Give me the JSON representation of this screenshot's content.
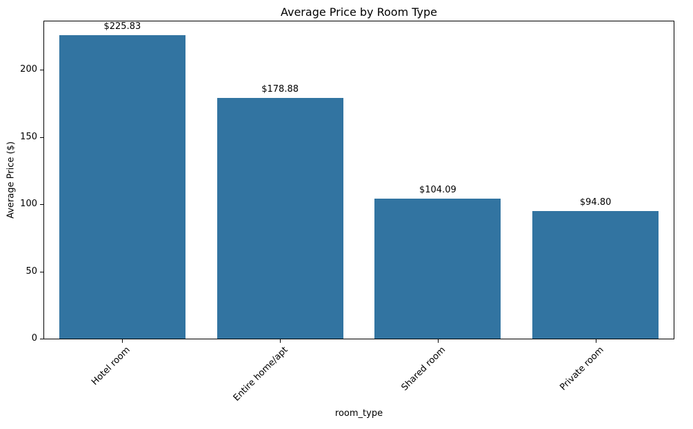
{
  "chart_data": {
    "type": "bar",
    "title": "Average Price by Room Type",
    "xlabel": "room_type",
    "ylabel": "Average Price ($)",
    "categories": [
      "Hotel room",
      "Entire home/apt",
      "Shared room",
      "Private room"
    ],
    "values": [
      225.83,
      178.88,
      104.09,
      94.8
    ],
    "bar_labels": [
      "$225.83",
      "$178.88",
      "$104.09",
      "$94.80"
    ],
    "yticks": [
      0,
      50,
      100,
      150,
      200
    ],
    "ylim": [
      0,
      237
    ],
    "bar_color": "#3274a1",
    "background_color": "#ffffff",
    "grid": false,
    "legend_position": "none",
    "xtick_rotation": 45
  }
}
